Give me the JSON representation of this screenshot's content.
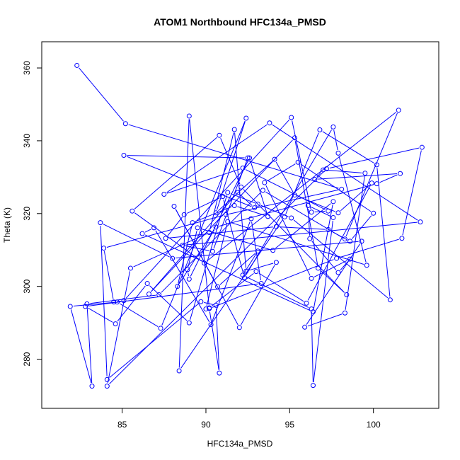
{
  "chart_data": {
    "type": "scatter",
    "mode": "lines+markers",
    "title": "ATOM1 Northbound HFC134a_PMSD",
    "xlabel": "HFC134a_PMSD",
    "ylabel": "Theta (K)",
    "xlim": [
      80.2,
      103.9
    ],
    "ylim": [
      266.5,
      367.2
    ],
    "xticks": [
      "85",
      "90",
      "95",
      "100"
    ],
    "yticks": [
      "280",
      "300",
      "320",
      "340",
      "360"
    ],
    "grid": false,
    "legend": "none",
    "colors": {
      "series": "#0000ff",
      "axis": "#000000"
    },
    "series": [
      {
        "x": [
          82.3,
          85.2,
          98.1,
          91.2,
          83.9,
          84.5,
          85.1,
          95.1,
          96.3,
          97.3,
          92.2,
          87.5,
          93.8,
          102.8,
          88.6,
          90.4,
          92.5,
          85.1,
          92.9,
          91.9,
          86.6,
          95.3,
          96.7,
          98.4,
          92.1,
          90.8,
          85.6,
          89.9,
          101.5,
          98.3,
          93.4,
          87.2,
          82.9,
          83.2,
          81.9,
          84.7,
          87.3,
          92.4,
          90.6,
          94.1,
          95.3,
          97.9,
          99.9,
          96.0,
          93.0,
          90.2,
          89.0,
          88.4,
          94.7,
          96.8,
          100.2,
          101.0,
          95.1,
          93.1,
          91.3,
          89.0,
          86.5,
          84.6,
          82.8,
          93.3,
          92.7,
          90.3,
          86.9,
          86.2,
          96.4,
          97.6,
          94.0,
          89.5,
          88.9,
          89.0,
          92.6,
          93.7,
          91.7,
          89.2,
          88.3,
          90.6,
          100.2,
          101.6,
          96.5,
          97.0,
          99.5,
          98.3,
          95.9,
          99.3,
          88.0,
          83.7,
          84.1,
          89.7,
          90.6,
          90.8,
          90.2,
          97.8,
          101.7,
          102.9,
          97.2,
          84.1,
          85.5,
          90.2,
          91.7,
          92.4,
          94.2,
          92.0,
          88.1,
          90.7,
          93.1,
          92.2,
          96.3,
          96.4,
          97.6,
          96.1,
          96.2,
          97.9,
          98.6,
          96.3,
          93.5,
          95.5,
          100.0,
          98.6,
          97.3,
          94.2,
          87.6,
          88.7,
          91.0,
          92.3,
          97.6,
          97.9,
          99.6,
          91.3,
          90.0
        ],
        "y": [
          360.7,
          344.7,
          326.7,
          319.7,
          310.5,
          295.7,
          296.1,
          346.4,
          320.4,
          320.7,
          332.5,
          325.3,
          344.9,
          317.7,
          311.3,
          309.6,
          335.3,
          336.0,
          321.6,
          325.8,
          297.9,
          340.8,
          305.0,
          297.7,
          327.3,
          341.5,
          320.7,
          306.4,
          348.4,
          313.0,
          326.4,
          297.7,
          295.2,
          272.6,
          294.5,
          295.7,
          288.5,
          346.2,
          320.2,
          334.9,
          325.1,
          320.2,
          328.4,
          295.4,
          304.1,
          294.1,
          346.8,
          276.8,
          319.1,
          343.0,
          333.4,
          296.3,
          318.8,
          322.6,
          325.8,
          290.0,
          300.8,
          289.7,
          294.5,
          300.8,
          318.6,
          289.5,
          316.1,
          314.5,
          293.0,
          323.3,
          309.9,
          316.1,
          304.6,
          302.0,
          335.3,
          319.2,
          322.2,
          317.5,
          300.0,
          316.3,
          328.2,
          331.0,
          329.4,
          332.0,
          331.1,
          292.7,
          288.8,
          312.4,
          307.7,
          317.5,
          274.4,
          295.8,
          294.8,
          276.2,
          293.9,
          307.7,
          313.2,
          338.2,
          332.3,
          272.6,
          305.0,
          314.8,
          343.1,
          304.2,
          306.6,
          288.7,
          322.0,
          299.9,
          309.7,
          303.1,
          293.8,
          272.8,
          318.9,
          322.2,
          313.1,
          303.8,
          307.5,
          302.2,
          328.5,
          334.1,
          320.1,
          312.4,
          315.6,
          316.4,
          313.2,
          319.7,
          324.7,
          302.4,
          343.8,
          336.6,
          305.8,
          317.8,
          293.8
        ]
      }
    ]
  }
}
